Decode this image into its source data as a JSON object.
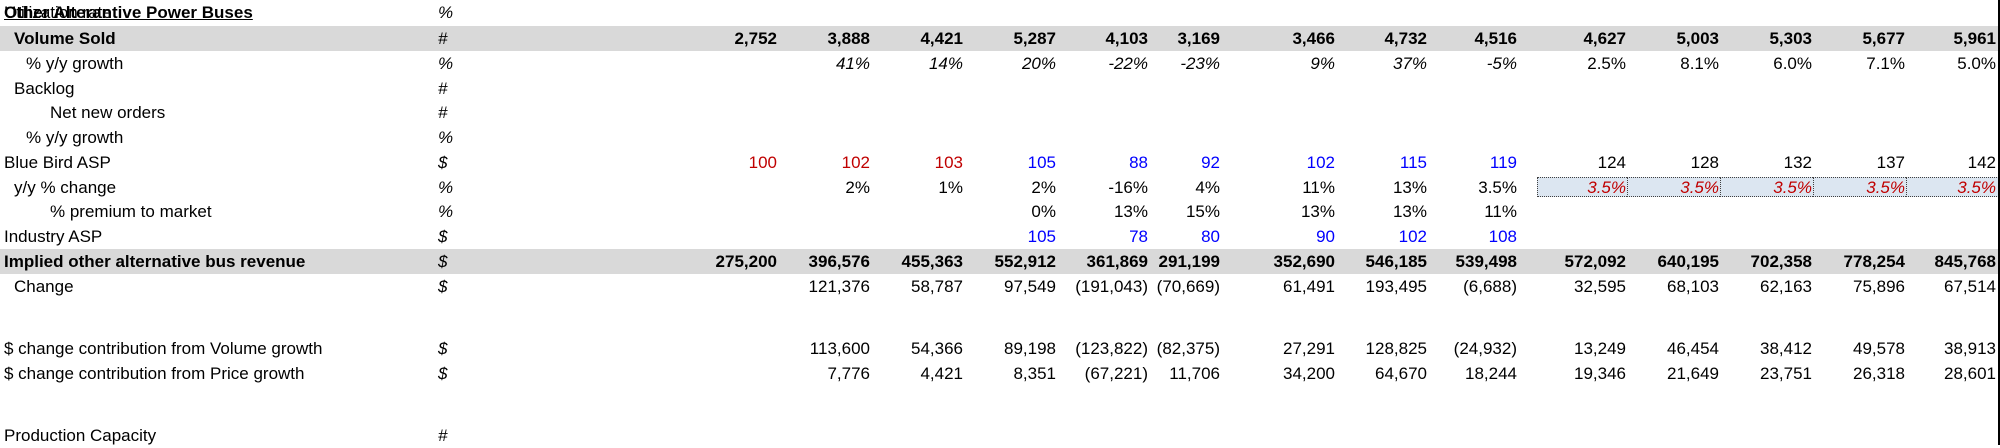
{
  "title": "Other Alterantive Power Buses",
  "rows": [
    {
      "id": "volume",
      "label": "Volume Sold",
      "indent": 1,
      "unit": "#",
      "style": "bold",
      "shaded": true,
      "values": [
        {
          "v": "2,752",
          "c": "black"
        },
        {
          "v": "3,888",
          "c": "black"
        },
        {
          "v": "4,421",
          "c": "black"
        },
        {
          "v": "5,287",
          "c": "black"
        },
        {
          "v": "4,103",
          "c": "black"
        },
        {
          "v": "3,169",
          "c": "black"
        },
        {
          "v": "3,466",
          "c": "black"
        },
        {
          "v": "4,732",
          "c": "black"
        },
        {
          "v": "4,516",
          "c": "black"
        },
        {
          "v": "4,627",
          "c": "black"
        },
        {
          "v": "5,003",
          "c": "black"
        },
        {
          "v": "5,303",
          "c": "black"
        },
        {
          "v": "5,677",
          "c": "black"
        },
        {
          "v": "5,961",
          "c": "black"
        }
      ]
    },
    {
      "id": "vol-growth",
      "label": "% y/y growth",
      "indent": 3,
      "unit": "%",
      "style": "",
      "values": [
        {
          "v": "",
          "c": "black"
        },
        {
          "v": "41%",
          "c": "black",
          "i": true
        },
        {
          "v": "14%",
          "c": "black",
          "i": true
        },
        {
          "v": "20%",
          "c": "black",
          "i": true
        },
        {
          "v": "-22%",
          "c": "black",
          "i": true
        },
        {
          "v": "-23%",
          "c": "black",
          "i": true
        },
        {
          "v": "9%",
          "c": "black",
          "i": true
        },
        {
          "v": "37%",
          "c": "black",
          "i": true
        },
        {
          "v": "-5%",
          "c": "black",
          "i": true
        },
        {
          "v": "2.5%",
          "c": "black"
        },
        {
          "v": "8.1%",
          "c": "black"
        },
        {
          "v": "6.0%",
          "c": "black"
        },
        {
          "v": "7.1%",
          "c": "black"
        },
        {
          "v": "5.0%",
          "c": "black"
        }
      ]
    },
    {
      "id": "backlog",
      "label": "Backlog",
      "indent": 1,
      "unit": "#",
      "style": "",
      "values": []
    },
    {
      "id": "net-new-orders",
      "label": "Net new orders",
      "indent": 2,
      "unit": "#",
      "style": "",
      "values": []
    },
    {
      "id": "nno-growth",
      "label": "% y/y growth",
      "indent": 3,
      "unit": "%",
      "style": "",
      "values": []
    },
    {
      "id": "bb-asp",
      "label": "Blue Bird ASP",
      "indent": 0,
      "unit": "$",
      "style": "",
      "values": [
        {
          "v": "100",
          "c": "red"
        },
        {
          "v": "102",
          "c": "red"
        },
        {
          "v": "103",
          "c": "red"
        },
        {
          "v": "105",
          "c": "blue"
        },
        {
          "v": "88",
          "c": "blue"
        },
        {
          "v": "92",
          "c": "blue"
        },
        {
          "v": "102",
          "c": "blue"
        },
        {
          "v": "115",
          "c": "blue"
        },
        {
          "v": "119",
          "c": "blue"
        },
        {
          "v": "124",
          "c": "black"
        },
        {
          "v": "128",
          "c": "black"
        },
        {
          "v": "132",
          "c": "black"
        },
        {
          "v": "137",
          "c": "black"
        },
        {
          "v": "142",
          "c": "black"
        }
      ]
    },
    {
      "id": "asp-change",
      "label": "y/y % change",
      "indent": 1,
      "unit": "%",
      "style": "",
      "values": [
        {
          "v": "",
          "c": "black"
        },
        {
          "v": "2%",
          "c": "black"
        },
        {
          "v": "1%",
          "c": "black"
        },
        {
          "v": "2%",
          "c": "black"
        },
        {
          "v": "-16%",
          "c": "black"
        },
        {
          "v": "4%",
          "c": "black"
        },
        {
          "v": "11%",
          "c": "black"
        },
        {
          "v": "13%",
          "c": "black"
        },
        {
          "v": "3.5%",
          "c": "black"
        },
        {
          "v": "3.5%",
          "c": "red",
          "i": true,
          "box": true
        },
        {
          "v": "3.5%",
          "c": "red",
          "i": true,
          "box": true
        },
        {
          "v": "3.5%",
          "c": "red",
          "i": true,
          "box": true
        },
        {
          "v": "3.5%",
          "c": "red",
          "i": true,
          "box": true
        },
        {
          "v": "3.5%",
          "c": "red",
          "i": true,
          "box": true
        }
      ]
    },
    {
      "id": "premium",
      "label": "% premium to market",
      "indent": 2,
      "unit": "%",
      "style": "",
      "values": [
        {
          "v": "",
          "c": "black"
        },
        {
          "v": "",
          "c": "black"
        },
        {
          "v": "",
          "c": "black"
        },
        {
          "v": "0%",
          "c": "black"
        },
        {
          "v": "13%",
          "c": "black"
        },
        {
          "v": "15%",
          "c": "black"
        },
        {
          "v": "13%",
          "c": "black"
        },
        {
          "v": "13%",
          "c": "black"
        },
        {
          "v": "11%",
          "c": "black"
        }
      ]
    },
    {
      "id": "industry-asp",
      "label": "Industry ASP",
      "indent": 0,
      "unit": "$",
      "style": "",
      "values": [
        {
          "v": "",
          "c": "black"
        },
        {
          "v": "",
          "c": "black"
        },
        {
          "v": "",
          "c": "black"
        },
        {
          "v": "105",
          "c": "blue"
        },
        {
          "v": "78",
          "c": "blue"
        },
        {
          "v": "80",
          "c": "blue"
        },
        {
          "v": "90",
          "c": "blue"
        },
        {
          "v": "102",
          "c": "blue"
        },
        {
          "v": "108",
          "c": "blue"
        }
      ]
    },
    {
      "id": "implied-rev",
      "label": "Implied other alternative bus revenue",
      "indent": 0,
      "unit": "$",
      "style": "bold",
      "shaded": true,
      "values": [
        {
          "v": "275,200",
          "c": "black"
        },
        {
          "v": "396,576",
          "c": "black"
        },
        {
          "v": "455,363",
          "c": "black"
        },
        {
          "v": "552,912",
          "c": "black"
        },
        {
          "v": "361,869",
          "c": "black"
        },
        {
          "v": "291,199",
          "c": "black"
        },
        {
          "v": "352,690",
          "c": "black"
        },
        {
          "v": "546,185",
          "c": "black"
        },
        {
          "v": "539,498",
          "c": "black"
        },
        {
          "v": "572,092",
          "c": "black"
        },
        {
          "v": "640,195",
          "c": "black"
        },
        {
          "v": "702,358",
          "c": "black"
        },
        {
          "v": "778,254",
          "c": "black"
        },
        {
          "v": "845,768",
          "c": "black"
        }
      ]
    },
    {
      "id": "change",
      "label": "Change",
      "indent": 1,
      "unit": "$",
      "style": "",
      "values": [
        {
          "v": "",
          "c": "black"
        },
        {
          "v": "121,376",
          "c": "black"
        },
        {
          "v": "58,787",
          "c": "black"
        },
        {
          "v": "97,549",
          "c": "black"
        },
        {
          "v": "(191,043)",
          "c": "black"
        },
        {
          "v": "(70,669)",
          "c": "black"
        },
        {
          "v": "61,491",
          "c": "black"
        },
        {
          "v": "193,495",
          "c": "black"
        },
        {
          "v": "(6,688)",
          "c": "black"
        },
        {
          "v": "32,595",
          "c": "black"
        },
        {
          "v": "68,103",
          "c": "black"
        },
        {
          "v": "62,163",
          "c": "black"
        },
        {
          "v": "75,896",
          "c": "black"
        },
        {
          "v": "67,514",
          "c": "black"
        }
      ]
    },
    {
      "id": "blank1",
      "label": "",
      "indent": 0,
      "unit": "",
      "style": "",
      "values": []
    },
    {
      "id": "vol-contrib",
      "label": "$ change contribution from Volume growth",
      "indent": 0,
      "unit": "$",
      "style": "",
      "values": [
        {
          "v": "",
          "c": "black"
        },
        {
          "v": "113,600",
          "c": "black"
        },
        {
          "v": "54,366",
          "c": "black"
        },
        {
          "v": "89,198",
          "c": "black"
        },
        {
          "v": "(123,822)",
          "c": "black"
        },
        {
          "v": "(82,375)",
          "c": "black"
        },
        {
          "v": "27,291",
          "c": "black"
        },
        {
          "v": "128,825",
          "c": "black"
        },
        {
          "v": "(24,932)",
          "c": "black"
        },
        {
          "v": "13,249",
          "c": "black"
        },
        {
          "v": "46,454",
          "c": "black"
        },
        {
          "v": "38,412",
          "c": "black"
        },
        {
          "v": "49,578",
          "c": "black"
        },
        {
          "v": "38,913",
          "c": "black"
        }
      ]
    },
    {
      "id": "price-contrib",
      "label": "$ change contribution from Price growth",
      "indent": 0,
      "unit": "$",
      "style": "",
      "values": [
        {
          "v": "",
          "c": "black"
        },
        {
          "v": "7,776",
          "c": "black"
        },
        {
          "v": "4,421",
          "c": "black"
        },
        {
          "v": "8,351",
          "c": "black"
        },
        {
          "v": "(67,221)",
          "c": "black"
        },
        {
          "v": "11,706",
          "c": "black"
        },
        {
          "v": "34,200",
          "c": "black"
        },
        {
          "v": "64,670",
          "c": "black"
        },
        {
          "v": "18,244",
          "c": "black"
        },
        {
          "v": "19,346",
          "c": "black"
        },
        {
          "v": "21,649",
          "c": "black"
        },
        {
          "v": "23,751",
          "c": "black"
        },
        {
          "v": "26,318",
          "c": "black"
        },
        {
          "v": "28,601",
          "c": "black"
        }
      ]
    },
    {
      "id": "blank2",
      "label": "",
      "indent": 0,
      "unit": "",
      "style": "",
      "values": []
    },
    {
      "id": "capacity",
      "label": "Production Capacity",
      "indent": 0,
      "unit": "#",
      "style": "",
      "values": []
    },
    {
      "id": "utilization",
      "label": "Utilization rate",
      "indent": 0,
      "unit": "%",
      "style": "",
      "values": []
    }
  ],
  "colors": {
    "red": "#c00000",
    "blue": "#0000ff",
    "black": "#000000",
    "shade": "#d9d9d9",
    "input": "#dce6f1"
  }
}
